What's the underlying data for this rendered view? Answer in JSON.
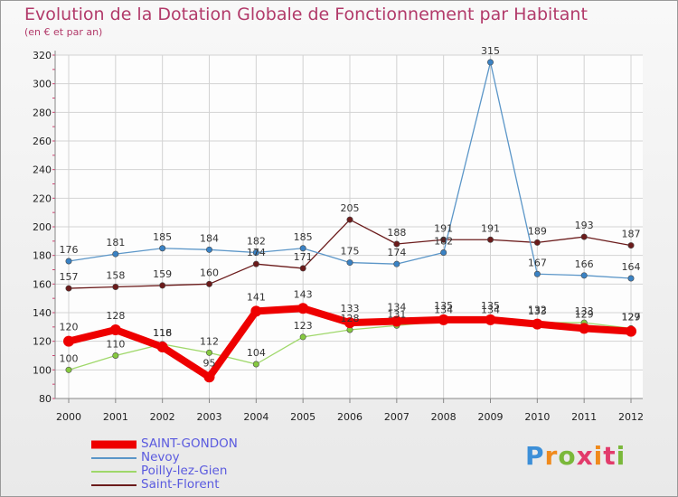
{
  "header": {
    "title": "Evolution de la Dotation Globale de Fonctionnement par Habitant",
    "subtitle": "(en € et par an)"
  },
  "brand": {
    "logo_text": "Proxiti"
  },
  "colors": {
    "grid": "#d2d2d2",
    "axis": "#888888",
    "minor_tick": "#d04070"
  },
  "chart_data": {
    "type": "line",
    "title": "Evolution de la Dotation Globale de Fonctionnement par Habitant",
    "subtitle": "(en € et par an)",
    "xlabel": "",
    "ylabel": "",
    "x": [
      "2000",
      "2001",
      "2002",
      "2003",
      "2004",
      "2005",
      "2006",
      "2007",
      "2008",
      "2009",
      "2010",
      "2011",
      "2012"
    ],
    "ylim": [
      80,
      320
    ],
    "yticks": [
      80,
      100,
      120,
      140,
      160,
      180,
      200,
      220,
      240,
      260,
      280,
      300,
      320
    ],
    "grid": true,
    "legend_position": "bottom-left",
    "series": [
      {
        "name": "Saint-Florent",
        "color": "#6b1b1b",
        "fill": "#6b1b1b",
        "width": 1.3,
        "values": [
          157,
          158,
          159,
          160,
          174,
          171,
          205,
          188,
          191,
          191,
          189,
          193,
          187
        ],
        "labels": [
          "157",
          "158",
          "159",
          "160",
          "174",
          "171",
          "205",
          "188",
          "191",
          "191",
          "189",
          "193",
          "187"
        ]
      },
      {
        "name": "Nevoy",
        "color": "#5b96c8",
        "fill": "#3a82c4",
        "width": 1.3,
        "values": [
          176,
          181,
          185,
          184,
          182,
          185,
          175,
          174,
          182,
          315,
          167,
          166,
          164
        ],
        "labels": [
          "176",
          "181",
          "185",
          "184",
          "182",
          "185",
          "175",
          "174",
          "182",
          "315",
          "167",
          "166",
          "164"
        ]
      },
      {
        "name": "Poilly-lez-Gien",
        "color": "#9fd86a",
        "fill": "#86c940",
        "width": 1.3,
        "values": [
          100,
          110,
          118,
          112,
          104,
          123,
          128,
          131,
          134,
          134,
          133,
          133,
          129
        ],
        "labels": [
          "100",
          "110",
          "118",
          "112",
          "104",
          "123",
          "128",
          "131",
          "134",
          "134",
          "133",
          "133",
          "129"
        ]
      },
      {
        "name": "SAINT-GONDON",
        "color": "#ee0000",
        "fill": "#ee0000",
        "width": 8,
        "values": [
          120,
          128,
          116,
          95,
          141,
          143,
          133,
          134,
          135,
          135,
          132,
          129,
          127
        ],
        "labels": [
          "120",
          "128",
          "116",
          "95",
          "141",
          "143",
          "133",
          "134",
          "135",
          "135",
          "132",
          "129",
          "127"
        ]
      }
    ],
    "legend_order": [
      "SAINT-GONDON",
      "Nevoy",
      "Poilly-lez-Gien",
      "Saint-Florent"
    ]
  }
}
